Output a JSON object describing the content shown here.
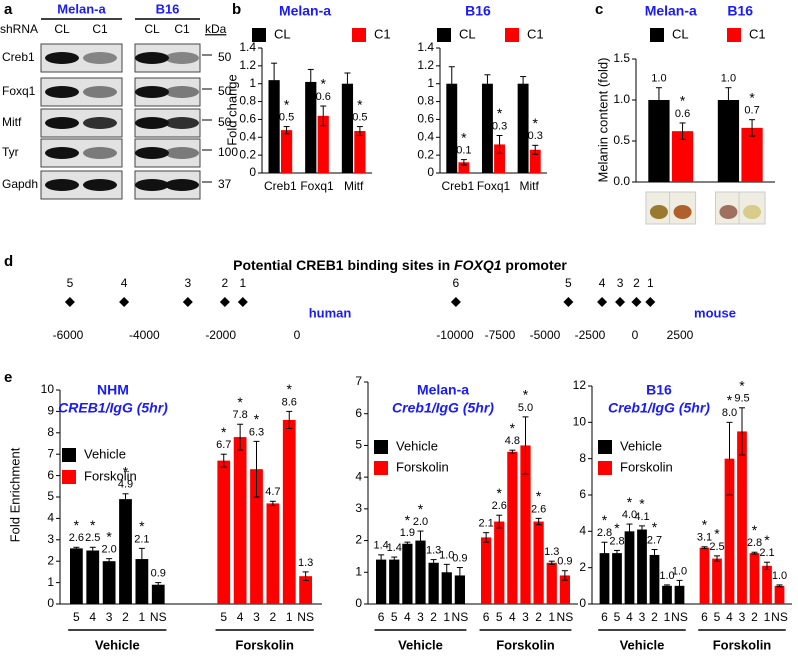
{
  "panel_labels": [
    "a",
    "b",
    "c",
    "d",
    "e"
  ],
  "blot": {
    "lane_label": "shRNA",
    "size_label": "kDa",
    "groups": [
      {
        "name": "Melan-a",
        "lanes": [
          "CL",
          "C1"
        ]
      },
      {
        "name": "B16",
        "lanes": [
          "CL",
          "C1"
        ]
      }
    ],
    "rows": [
      {
        "name": "Creb1",
        "kda": 50
      },
      {
        "name": "Foxq1",
        "kda": 50
      },
      {
        "name": "Mitf",
        "kda": 50
      },
      {
        "name": "Tyr",
        "kda": 100
      },
      {
        "name": "Gapdh",
        "kda": 37
      }
    ]
  },
  "promoter": {
    "title": [
      "Potential CREB1 binding sites  in",
      "FOXQ1",
      "promoter"
    ],
    "maps": [
      {
        "species": "human",
        "xlim": [
          -6000,
          0
        ],
        "xticks": [
          -6000,
          -4000,
          -2000,
          0
        ],
        "sites": [
          {
            "label": "5",
            "position": -5950
          },
          {
            "label": "4",
            "position": -4530
          },
          {
            "label": "3",
            "position": -2860
          },
          {
            "label": "2",
            "position": -1890
          },
          {
            "label": "1",
            "position": -1420
          }
        ]
      },
      {
        "species": "mouse",
        "xlim": [
          -10000,
          2500
        ],
        "xticks": [
          -10000,
          -7500,
          -5000,
          -2500,
          0,
          2500
        ],
        "sites": [
          {
            "label": "6",
            "position": -9950
          },
          {
            "label": "5",
            "position": -3700
          },
          {
            "label": "4",
            "position": -1830
          },
          {
            "label": "3",
            "position": -830
          },
          {
            "label": "2",
            "position": 80
          },
          {
            "label": "1",
            "position": 850
          }
        ]
      }
    ]
  },
  "chart_data": [
    {
      "type": "bar",
      "title": "Melan-a",
      "ylabel": "Fold change",
      "categories": [
        "Creb1",
        "Foxq1",
        "Mitf"
      ],
      "series": [
        {
          "name": "CL",
          "color": "#000000",
          "values": [
            1.04,
            1.02,
            1.0
          ],
          "errors": [
            0.19,
            0.14,
            0.12
          ]
        },
        {
          "name": "C1",
          "color": "#ff0000",
          "values": [
            0.48,
            0.64,
            0.47
          ],
          "errors": [
            0.04,
            0.11,
            0.05
          ],
          "value_labels": [
            "0.5",
            "0.6",
            "0.5"
          ],
          "significance": [
            "*",
            "*",
            "*"
          ]
        }
      ],
      "ylim": [
        0,
        1.4
      ],
      "yticks": [
        0,
        0.2,
        0.4,
        0.6,
        0.8,
        1,
        1.2,
        1.4
      ]
    },
    {
      "type": "bar",
      "title": "B16",
      "categories": [
        "Creb1",
        "Foxq1",
        "Mitf"
      ],
      "series": [
        {
          "name": "CL",
          "color": "#000000",
          "values": [
            1.0,
            1.0,
            1.0
          ],
          "errors": [
            0.19,
            0.1,
            0.08
          ]
        },
        {
          "name": "C1",
          "color": "#ff0000",
          "values": [
            0.12,
            0.32,
            0.26
          ],
          "errors": [
            0.03,
            0.1,
            0.05
          ],
          "value_labels": [
            "0.1",
            "0.3",
            "0.3"
          ],
          "significance": [
            "*",
            "*",
            "*"
          ]
        }
      ],
      "ylim": [
        0,
        1.4
      ],
      "yticks": [
        0,
        0.2,
        0.4,
        0.6,
        0.8,
        1,
        1.2,
        1.4
      ]
    },
    {
      "type": "bar",
      "ylabel": "Melanin content (fold)",
      "categories": [
        "Melan-a",
        "B16"
      ],
      "series": [
        {
          "name": "CL",
          "color": "#000000",
          "values": [
            1.0,
            1.0
          ],
          "errors": [
            0.15,
            0.15
          ],
          "value_labels": [
            "1.0",
            "1.0"
          ]
        },
        {
          "name": "C1",
          "color": "#ff0000",
          "values": [
            0.62,
            0.66
          ],
          "errors": [
            0.1,
            0.1
          ],
          "value_labels": [
            "0.6",
            "0.7"
          ],
          "significance": [
            "*",
            "*"
          ]
        }
      ],
      "ylim": [
        0,
        1.5
      ],
      "yticks": [
        {
          "value": 0,
          "label": "0.0"
        },
        0.5,
        {
          "value": 1,
          "label": "1.0"
        },
        1.5
      ]
    },
    {
      "type": "bar",
      "title": "NHM",
      "subtitle": "CREB1/IgG (5hr)",
      "ylabel": "Fold Enrichment",
      "categories": [
        "5",
        "4",
        "3",
        "2",
        "1",
        "NS"
      ],
      "series": [
        {
          "name": "Vehicle",
          "color": "#000000",
          "values": [
            2.6,
            2.5,
            2.0,
            4.9,
            2.1,
            0.9
          ],
          "errors": [
            0.05,
            0.15,
            0.12,
            0.25,
            0.5,
            0.1
          ],
          "value_labels": [
            "2.6",
            "2.5",
            "2.0",
            "4.9",
            "2.1",
            "0.9"
          ],
          "significance": [
            "*",
            "*",
            "*",
            "*",
            "*",
            null
          ]
        },
        {
          "name": "Forskolin",
          "color": "#ff0000",
          "values": [
            6.7,
            7.8,
            6.3,
            4.7,
            8.6,
            1.3
          ],
          "errors": [
            0.3,
            0.6,
            1.3,
            0.1,
            0.4,
            0.2
          ],
          "value_labels": [
            "6.7",
            "7.8",
            "6.3",
            "4.7",
            "8.6",
            "1.3"
          ],
          "significance": [
            "*",
            "*",
            "*",
            null,
            "*",
            null
          ]
        }
      ],
      "ylim": [
        0,
        10
      ],
      "yticks": [
        0,
        1,
        2,
        3,
        4,
        5,
        6,
        7,
        8,
        9,
        10
      ]
    },
    {
      "type": "bar",
      "title": "Melan-a",
      "subtitle": "Creb1/IgG (5hr)",
      "categories": [
        "6",
        "5",
        "4",
        "3",
        "2",
        "1",
        "NS"
      ],
      "series": [
        {
          "name": "Vehicle",
          "color": "#000000",
          "values": [
            1.4,
            1.4,
            1.9,
            2.0,
            1.3,
            1.0,
            0.9
          ],
          "errors": [
            0.15,
            0.08,
            0.05,
            0.3,
            0.1,
            0.25,
            0.25
          ],
          "value_labels": [
            "1.4",
            "1.4",
            "1.9",
            "2.0",
            "1.3",
            "1.0",
            "0.9"
          ],
          "significance": [
            null,
            null,
            "*",
            "*",
            null,
            null,
            null
          ]
        },
        {
          "name": "Forskolin",
          "color": "#ff0000",
          "values": [
            2.1,
            2.6,
            4.8,
            5.0,
            2.6,
            1.3,
            0.9
          ],
          "errors": [
            0.15,
            0.2,
            0.05,
            0.9,
            0.1,
            0.05,
            0.15
          ],
          "value_labels": [
            "2.1",
            "2.6",
            "4.8",
            "5.0",
            "2.6",
            "1.3",
            "0.9"
          ],
          "significance": [
            null,
            "*",
            "*",
            "*",
            "*",
            null,
            null
          ]
        }
      ],
      "ylim": [
        0,
        7
      ],
      "yticks": [
        0,
        1,
        2,
        3,
        4,
        5,
        6,
        7
      ]
    },
    {
      "type": "bar",
      "title": "B16",
      "subtitle": "Creb1/IgG (5hr)",
      "categories": [
        "6",
        "5",
        "4",
        "3",
        "2",
        "1",
        "NS"
      ],
      "series": [
        {
          "name": "Vehicle",
          "color": "#000000",
          "values": [
            2.8,
            2.8,
            4.0,
            4.1,
            2.7,
            1.0,
            1.0
          ],
          "errors": [
            0.6,
            0.15,
            0.4,
            0.2,
            0.3,
            0.05,
            0.3
          ],
          "value_labels": [
            "2.8",
            "2.8",
            "4.0",
            "4.1",
            "2.7",
            "1.0",
            "1.0"
          ],
          "significance": [
            "*",
            "*",
            "*",
            "*",
            "*",
            null,
            null
          ]
        },
        {
          "name": "Forskolin",
          "color": "#ff0000",
          "values": [
            3.1,
            2.5,
            8.0,
            9.5,
            2.8,
            2.1,
            1.0
          ],
          "errors": [
            0.05,
            0.15,
            2.0,
            1.3,
            0.05,
            0.2,
            0.05
          ],
          "value_labels": [
            "3.1",
            "2.5",
            "8.0",
            "9.5",
            "2.8",
            "2.1",
            "1.0"
          ],
          "significance": [
            "*",
            "*",
            "*",
            "*",
            "*",
            "*",
            null
          ]
        }
      ],
      "ylim": [
        0,
        12
      ],
      "yticks": [
        0,
        2,
        4,
        6,
        8,
        10,
        12
      ]
    }
  ]
}
